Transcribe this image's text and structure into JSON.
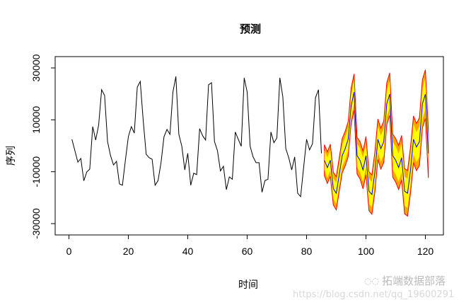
{
  "chart_data": {
    "type": "line",
    "title": "预测",
    "xlabel": "时间",
    "ylabel": "序列",
    "xlim": [
      0,
      125
    ],
    "ylim": [
      -35000,
      35000
    ],
    "x_ticks": [
      0,
      20,
      40,
      60,
      80,
      100,
      120
    ],
    "y_ticks": [
      -30000,
      -10000,
      10000,
      30000
    ],
    "grid": false,
    "colors": {
      "history": "#000000",
      "mean": "#0000ff",
      "band80": "#ffff00",
      "band95": "#ffa500",
      "band95_edge": "#ff0000"
    },
    "history": {
      "x_start": 1,
      "values": [
        2500,
        -1900,
        -6300,
        -4900,
        -13500,
        -10100,
        -9000,
        7400,
        2200,
        8000,
        21600,
        19400,
        1600,
        -3800,
        -7400,
        -6000,
        -14700,
        -15200,
        -5600,
        3500,
        7400,
        4900,
        22600,
        24800,
        9800,
        -3300,
        -4600,
        -5200,
        -15200,
        -13400,
        -6500,
        3500,
        6300,
        4400,
        20700,
        26700,
        4400,
        -200,
        -9300,
        -2900,
        -15200,
        -10600,
        -11100,
        6600,
        3900,
        2200,
        23500,
        24300,
        1600,
        -1900,
        -9700,
        -7900,
        -16900,
        -12000,
        -12900,
        5300,
        2500,
        -200,
        26200,
        20700,
        -200,
        -4300,
        -6500,
        -6500,
        -17900,
        -13400,
        -12900,
        5300,
        1200,
        3000,
        26200,
        18900,
        -1100,
        -4600,
        -9300,
        -4300,
        -18300,
        -19600,
        -8400,
        2500,
        -1600,
        800,
        18500,
        21600,
        -2900
      ]
    },
    "forecast": {
      "x_start": 86,
      "mean": [
        -5600,
        -8400,
        -5600,
        -16500,
        -18300,
        -11100,
        -3800,
        -1100,
        2500,
        15300,
        20700,
        -3800,
        -5600,
        -9300,
        -3800,
        -17500,
        -18800,
        -10100,
        2500,
        -1100,
        1600,
        16200,
        19900,
        -3800,
        -5600,
        -8400,
        -4600,
        -17500,
        -18300,
        -9300,
        2500,
        -500,
        1600,
        16200,
        19900,
        -2900
      ],
      "lower95": [
        -11600,
        -14500,
        -11800,
        -22800,
        -24700,
        -17600,
        -10400,
        -7800,
        -4300,
        8400,
        13700,
        -10900,
        -12800,
        -16600,
        -11200,
        -25000,
        -26400,
        -17800,
        -5300,
        -9000,
        -6400,
        8100,
        11700,
        -12100,
        -14000,
        -16900,
        -13200,
        -26200,
        -27100,
        -18200,
        -6500,
        -9600,
        -7600,
        6900,
        10500,
        -12400
      ],
      "lower80": [
        -9400,
        -12300,
        -9600,
        -20500,
        -22400,
        -15300,
        -8000,
        -5400,
        -1900,
        10900,
        16200,
        -8300,
        -10200,
        -14000,
        -8500,
        -22300,
        -23700,
        -15000,
        -2500,
        -6200,
        -3500,
        11000,
        14700,
        -9100,
        -11000,
        -13800,
        -10100,
        -23100,
        -23900,
        -15000,
        -3300,
        -6300,
        -4300,
        10200,
        13900,
        -9000
      ],
      "upper80": [
        -1800,
        -4500,
        -1600,
        -12500,
        -14200,
        -6900,
        400,
        3200,
        6900,
        19700,
        25200,
        700,
        -1000,
        -4600,
        900,
        -12700,
        -13900,
        -5200,
        7500,
        4000,
        6700,
        21400,
        25100,
        1500,
        -200,
        -3000,
        900,
        -11900,
        -12700,
        -3600,
        8300,
        5300,
        7500,
        22200,
        25900,
        3200
      ],
      "upper95": [
        400,
        -2300,
        600,
        -10200,
        -11900,
        -4600,
        2800,
        5600,
        9300,
        22200,
        27700,
        3300,
        1600,
        -2000,
        3600,
        -10000,
        -11200,
        -2400,
        10300,
        6800,
        9600,
        24300,
        28100,
        4500,
        2800,
        100,
        4000,
        -8800,
        -9500,
        -400,
        11500,
        8600,
        10800,
        25500,
        29300,
        6600
      ]
    }
  },
  "watermark": {
    "brand": "拓端数据部落",
    "url": "https://blog.csdn.net/qq_19600291",
    "icon": "wechat-icon"
  }
}
